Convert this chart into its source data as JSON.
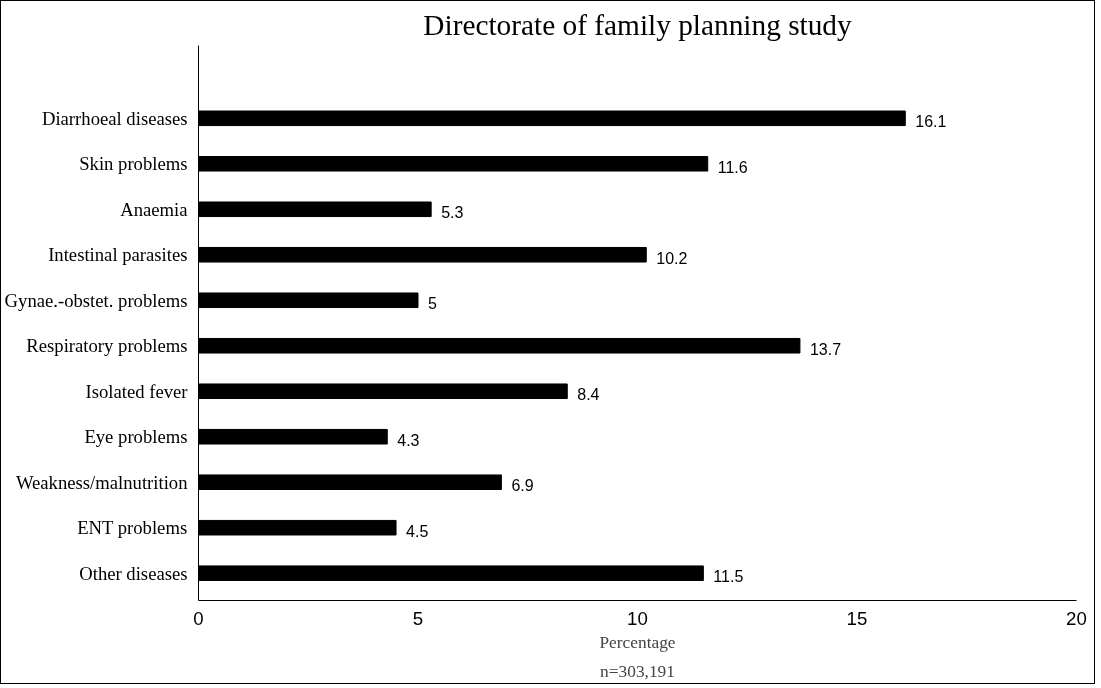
{
  "chart_data": {
    "type": "bar",
    "orientation": "horizontal",
    "title": "Directorate of family planning study",
    "xlabel": "Percentage",
    "annotations": [
      "n=303,191"
    ],
    "categories": [
      "Diarrhoeal diseases",
      "Skin problems",
      "Anaemia",
      "Intestinal parasites",
      "Gynae.-obstet. problems",
      "Respiratory problems",
      "Isolated fever",
      "Eye problems",
      "Weakness/malnutrition",
      "ENT problems",
      "Other diseases"
    ],
    "values": [
      16.1,
      11.6,
      5.3,
      10.2,
      5,
      13.7,
      8.4,
      4.3,
      6.9,
      4.5,
      11.5
    ],
    "color": "#000000",
    "xlim": [
      0,
      20
    ],
    "xticks": [
      0,
      5,
      10,
      15,
      20
    ],
    "data_labels": true,
    "grid": false
  }
}
